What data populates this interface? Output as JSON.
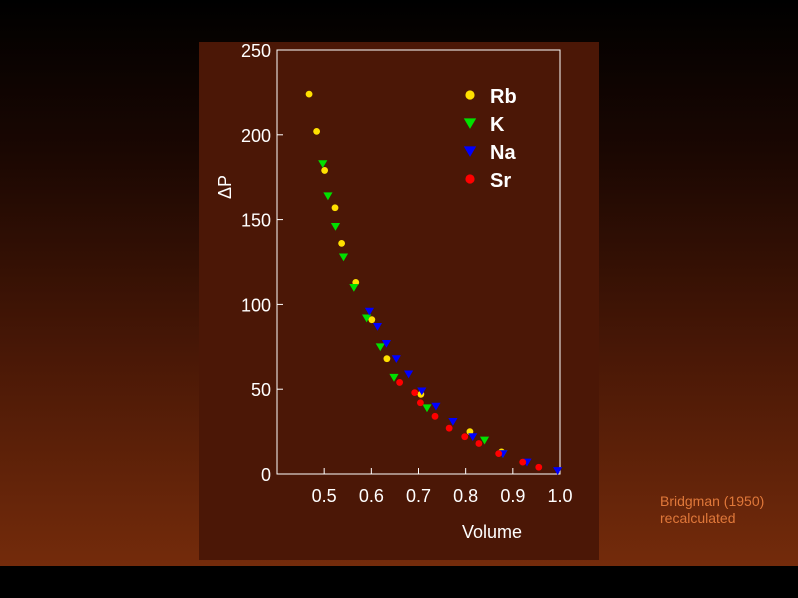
{
  "chart_data": {
    "type": "scatter",
    "xlabel": "Volume",
    "ylabel": "ΔP",
    "xlim": [
      0.4,
      1.0
    ],
    "ylim": [
      0,
      250
    ],
    "xticks": [
      "0.5",
      "0.6",
      "0.7",
      "0.8",
      "0.9",
      "1.0"
    ],
    "yticks": [
      "0",
      "50",
      "100",
      "150",
      "200",
      "250"
    ],
    "legend_position": "top-right",
    "series": [
      {
        "name": "Rb",
        "marker": "circle",
        "color": "#ffe000",
        "points": [
          [
            0.468,
            224
          ],
          [
            0.484,
            202
          ],
          [
            0.501,
            179
          ],
          [
            0.523,
            157
          ],
          [
            0.537,
            136
          ],
          [
            0.567,
            113
          ],
          [
            0.601,
            91
          ],
          [
            0.633,
            68
          ],
          [
            0.705,
            47
          ],
          [
            0.809,
            25
          ],
          [
            0.876,
            13
          ]
        ]
      },
      {
        "name": "K",
        "marker": "triangle-down",
        "color": "#00e000",
        "points": [
          [
            0.497,
            183
          ],
          [
            0.508,
            164
          ],
          [
            0.524,
            146
          ],
          [
            0.541,
            128
          ],
          [
            0.563,
            110
          ],
          [
            0.59,
            92
          ],
          [
            0.619,
            75
          ],
          [
            0.648,
            57
          ],
          [
            0.718,
            39
          ],
          [
            0.84,
            20
          ],
          [
            0.879,
            12
          ]
        ]
      },
      {
        "name": "Na",
        "marker": "triangle-down",
        "color": "#0000ff",
        "points": [
          [
            0.596,
            96
          ],
          [
            0.613,
            87
          ],
          [
            0.632,
            77
          ],
          [
            0.653,
            68
          ],
          [
            0.679,
            59
          ],
          [
            0.707,
            49
          ],
          [
            0.737,
            40
          ],
          [
            0.773,
            31
          ],
          [
            0.815,
            22
          ],
          [
            0.879,
            12
          ],
          [
            0.93,
            7
          ],
          [
            0.995,
            2
          ]
        ]
      },
      {
        "name": "Sr",
        "marker": "circle",
        "color": "#ff0000",
        "points": [
          [
            0.66,
            54
          ],
          [
            0.692,
            48
          ],
          [
            0.704,
            42
          ],
          [
            0.735,
            34
          ],
          [
            0.765,
            27
          ],
          [
            0.798,
            22
          ],
          [
            0.828,
            18
          ],
          [
            0.87,
            12
          ],
          [
            0.921,
            7
          ],
          [
            0.955,
            4
          ]
        ]
      }
    ]
  },
  "citation": {
    "line1": "Bridgman (1950)",
    "line2": "recalculated"
  }
}
